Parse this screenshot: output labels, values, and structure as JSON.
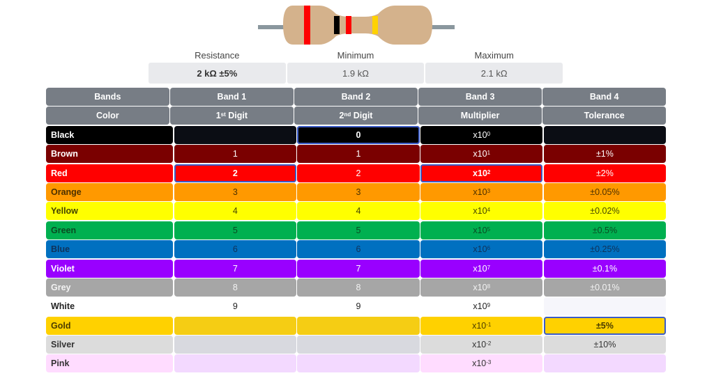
{
  "resistor": {
    "body_color": "#d4b28c",
    "lead_color": "#8a979e",
    "bands": [
      "#ff0000",
      "#000000",
      "#ff0000",
      "#ffd200"
    ]
  },
  "summary": {
    "resistance": {
      "label": "Resistance",
      "value": "2 kΩ ±5%"
    },
    "minimum": {
      "label": "Minimum",
      "value": "1.9 kΩ"
    },
    "maximum": {
      "label": "Maximum",
      "value": "2.1 kΩ"
    }
  },
  "table": {
    "header1": [
      "Bands",
      "Band 1",
      "Band 2",
      "Band 3",
      "Band 4"
    ],
    "header2": {
      "color": "Color",
      "digit1": "1",
      "digit1_sup": "st",
      "digit1_text": " Digit",
      "digit2": "2",
      "digit2_sup": "nd",
      "digit2_text": " Digit",
      "multiplier": "Multiplier",
      "tolerance": "Tolerance"
    },
    "rows": [
      {
        "name": "Black",
        "bg": "#000000",
        "fg": "#ffffff",
        "d1": "",
        "d2": "0",
        "mult_base": "x10",
        "mult_exp": "0",
        "tol": ""
      },
      {
        "name": "Brown",
        "bg": "#7a0000",
        "fg": "#ffffff",
        "d1": "1",
        "d2": "1",
        "mult_base": "x10",
        "mult_exp": "1",
        "tol": "±1%"
      },
      {
        "name": "Red",
        "bg": "#ff0000",
        "fg": "#ffffff",
        "d1": "2",
        "d2": "2",
        "mult_base": "x10",
        "mult_exp": "2",
        "tol": "±2%"
      },
      {
        "name": "Orange",
        "bg": "#ff9900",
        "fg": "#4a3000",
        "d1": "3",
        "d2": "3",
        "mult_base": "x10",
        "mult_exp": "3",
        "tol": "±0.05%"
      },
      {
        "name": "Yellow",
        "bg": "#ffff00",
        "fg": "#444400",
        "d1": "4",
        "d2": "4",
        "mult_base": "x10",
        "mult_exp": "4",
        "tol": "±0.02%"
      },
      {
        "name": "Green",
        "bg": "#00b050",
        "fg": "#0b4a22",
        "d1": "5",
        "d2": "5",
        "mult_base": "x10",
        "mult_exp": "5",
        "tol": "±0.5%"
      },
      {
        "name": "Blue",
        "bg": "#0070c0",
        "fg": "#10325a",
        "d1": "6",
        "d2": "6",
        "mult_base": "x10",
        "mult_exp": "6",
        "tol": "±0.25%"
      },
      {
        "name": "Violet",
        "bg": "#9900ff",
        "fg": "#ffffff",
        "d1": "7",
        "d2": "7",
        "mult_base": "x10",
        "mult_exp": "7",
        "tol": "±0.1%"
      },
      {
        "name": "Grey",
        "bg": "#a6a6a6",
        "fg": "#f2f2f2",
        "d1": "8",
        "d2": "8",
        "mult_base": "x10",
        "mult_exp": "8",
        "tol": "±0.01%"
      },
      {
        "name": "White",
        "bg": "#ffffff",
        "fg": "#222222",
        "d1": "9",
        "d2": "9",
        "mult_base": "x10",
        "mult_exp": "9",
        "tol": ""
      },
      {
        "name": "Gold",
        "bg": "#ffd100",
        "fg": "#4a3c00",
        "d1": "",
        "d2": "",
        "mult_base": "x10",
        "mult_exp": "-1",
        "tol": "±5%"
      },
      {
        "name": "Silver",
        "bg": "#dcdcdc",
        "fg": "#333333",
        "d1": "",
        "d2": "",
        "mult_base": "x10",
        "mult_exp": "-2",
        "tol": "±10%"
      },
      {
        "name": "Pink",
        "bg": "#ffdcff",
        "fg": "#333333",
        "d1": "",
        "d2": "",
        "mult_base": "x10",
        "mult_exp": "-3",
        "tol": ""
      }
    ],
    "selected": {
      "band1": "Red",
      "band2": "Black",
      "band3": "Red",
      "band4": "Gold"
    },
    "selection_outline_color": "#3a5bc7",
    "header_bg": "#777d85"
  }
}
